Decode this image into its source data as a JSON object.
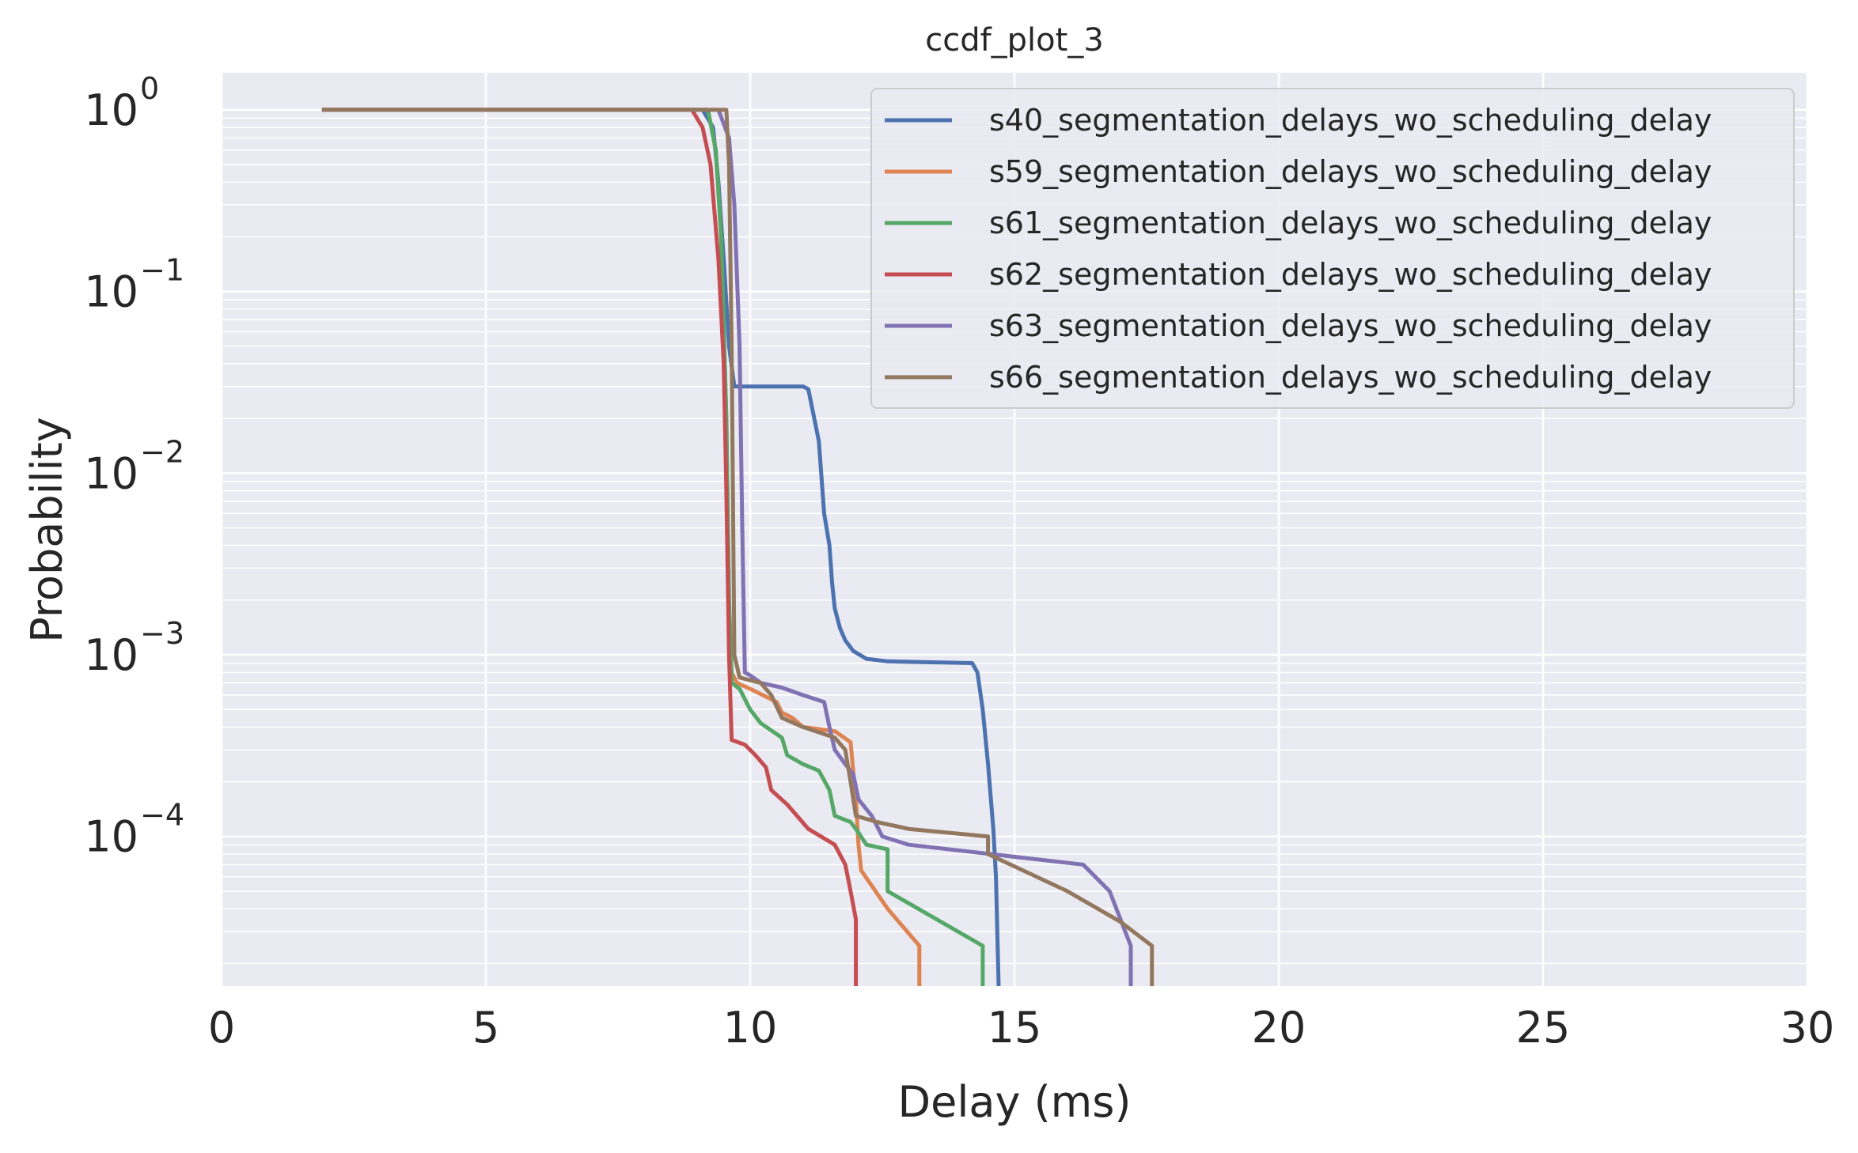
{
  "chart_data": {
    "type": "line",
    "title": "ccdf_plot_3",
    "xlabel": "Delay (ms)",
    "ylabel": "Probability",
    "xlim": [
      0,
      30
    ],
    "ylim": [
      1.5e-05,
      1.6
    ],
    "yscale": "log",
    "grid": true,
    "legend_position": "top-right",
    "x_ticks": [
      {
        "value": 0,
        "label": "0"
      },
      {
        "value": 5,
        "label": "5"
      },
      {
        "value": 10,
        "label": "10"
      },
      {
        "value": 15,
        "label": "15"
      },
      {
        "value": 20,
        "label": "20"
      },
      {
        "value": 25,
        "label": "25"
      },
      {
        "value": 30,
        "label": "30"
      }
    ],
    "y_ticks": [
      {
        "value": 1,
        "base": "10",
        "exp": "0"
      },
      {
        "value": 0.1,
        "base": "10",
        "exp": "−1"
      },
      {
        "value": 0.01,
        "base": "10",
        "exp": "−2"
      },
      {
        "value": 0.001,
        "base": "10",
        "exp": "−3"
      },
      {
        "value": 0.0001,
        "base": "10",
        "exp": "−4"
      }
    ],
    "series": [
      {
        "name": "s40_segmentation_delays_wo_scheduling_delay",
        "color": "#4c72b0",
        "points": [
          [
            1.9,
            1
          ],
          [
            9.1,
            1
          ],
          [
            9.3,
            0.8
          ],
          [
            9.4,
            0.4
          ],
          [
            9.5,
            0.15
          ],
          [
            9.6,
            0.05
          ],
          [
            9.7,
            0.03
          ],
          [
            11.0,
            0.03
          ],
          [
            11.1,
            0.029
          ],
          [
            11.3,
            0.015
          ],
          [
            11.4,
            0.006
          ],
          [
            11.5,
            0.004
          ],
          [
            11.55,
            0.0025
          ],
          [
            11.6,
            0.0018
          ],
          [
            11.7,
            0.0014
          ],
          [
            11.8,
            0.0012
          ],
          [
            11.95,
            0.00105
          ],
          [
            12.2,
            0.00095
          ],
          [
            12.6,
            0.00092
          ],
          [
            14.2,
            0.0009
          ],
          [
            14.3,
            0.0008
          ],
          [
            14.4,
            0.0005
          ],
          [
            14.5,
            0.00025
          ],
          [
            14.6,
            0.00011
          ],
          [
            14.65,
            6e-05
          ],
          [
            14.7,
            1.5e-05
          ]
        ]
      },
      {
        "name": "s59_segmentation_delays_wo_scheduling_delay",
        "color": "#dd8452",
        "points": [
          [
            1.9,
            1
          ],
          [
            9.2,
            1
          ],
          [
            9.35,
            0.6
          ],
          [
            9.45,
            0.2
          ],
          [
            9.55,
            0.02
          ],
          [
            9.6,
            0.002
          ],
          [
            9.65,
            0.0008
          ],
          [
            9.75,
            0.0007
          ],
          [
            10.0,
            0.00065
          ],
          [
            10.5,
            0.00055
          ],
          [
            10.6,
            0.00048
          ],
          [
            10.8,
            0.00045
          ],
          [
            11.0,
            0.0004
          ],
          [
            11.6,
            0.00038
          ],
          [
            11.9,
            0.00033
          ],
          [
            12.0,
            0.00016
          ],
          [
            12.05,
            9e-05
          ],
          [
            12.1,
            6.5e-05
          ],
          [
            12.6,
            4e-05
          ],
          [
            13.2,
            2.5e-05
          ],
          [
            13.2,
            1.5e-05
          ]
        ]
      },
      {
        "name": "s61_segmentation_delays_wo_scheduling_delay",
        "color": "#55a868",
        "points": [
          [
            1.9,
            1
          ],
          [
            9.2,
            1
          ],
          [
            9.35,
            0.6
          ],
          [
            9.45,
            0.2
          ],
          [
            9.55,
            0.02
          ],
          [
            9.6,
            0.002
          ],
          [
            9.65,
            0.0007
          ],
          [
            9.8,
            0.00065
          ],
          [
            10.0,
            0.0005
          ],
          [
            10.2,
            0.00042
          ],
          [
            10.6,
            0.00035
          ],
          [
            10.7,
            0.00028
          ],
          [
            11.0,
            0.00025
          ],
          [
            11.3,
            0.00023
          ],
          [
            11.5,
            0.00018
          ],
          [
            11.6,
            0.00013
          ],
          [
            11.9,
            0.00012
          ],
          [
            12.0,
            0.00011
          ],
          [
            12.2,
            9e-05
          ],
          [
            12.6,
            8.5e-05
          ],
          [
            12.6,
            5e-05
          ],
          [
            14.4,
            2.5e-05
          ],
          [
            14.4,
            1.5e-05
          ]
        ]
      },
      {
        "name": "s62_segmentation_delays_wo_scheduling_delay",
        "color": "#c44e52",
        "points": [
          [
            1.9,
            1
          ],
          [
            8.9,
            1
          ],
          [
            9.1,
            0.8
          ],
          [
            9.25,
            0.5
          ],
          [
            9.4,
            0.15
          ],
          [
            9.5,
            0.04
          ],
          [
            9.55,
            0.008
          ],
          [
            9.6,
            0.001
          ],
          [
            9.65,
            0.00034
          ],
          [
            9.9,
            0.00032
          ],
          [
            10.1,
            0.00028
          ],
          [
            10.3,
            0.00024
          ],
          [
            10.4,
            0.00018
          ],
          [
            10.7,
            0.00015
          ],
          [
            11.1,
            0.00011
          ],
          [
            11.6,
            9e-05
          ],
          [
            11.8,
            7e-05
          ],
          [
            11.9,
            5e-05
          ],
          [
            12.0,
            3.5e-05
          ],
          [
            12.0,
            1.5e-05
          ]
        ]
      },
      {
        "name": "s63_segmentation_delays_wo_scheduling_delay",
        "color": "#8172b3",
        "points": [
          [
            1.9,
            1
          ],
          [
            9.4,
            1
          ],
          [
            9.6,
            0.7
          ],
          [
            9.7,
            0.3
          ],
          [
            9.8,
            0.05
          ],
          [
            9.85,
            0.005
          ],
          [
            9.9,
            0.0008
          ],
          [
            10.0,
            0.00077
          ],
          [
            10.2,
            0.0007
          ],
          [
            10.6,
            0.00066
          ],
          [
            11.0,
            0.0006
          ],
          [
            11.4,
            0.00055
          ],
          [
            11.5,
            0.0004
          ],
          [
            11.6,
            0.0003
          ],
          [
            11.8,
            0.00025
          ],
          [
            11.95,
            0.00022
          ],
          [
            12.05,
            0.00016
          ],
          [
            12.3,
            0.00013
          ],
          [
            12.5,
            0.0001
          ],
          [
            13.0,
            9e-05
          ],
          [
            16.3,
            7e-05
          ],
          [
            16.8,
            5e-05
          ],
          [
            17.2,
            2.5e-05
          ],
          [
            17.2,
            1.5e-05
          ]
        ]
      },
      {
        "name": "s66_segmentation_delays_wo_scheduling_delay",
        "color": "#937860",
        "points": [
          [
            1.9,
            1
          ],
          [
            9.55,
            1
          ],
          [
            9.6,
            0.5
          ],
          [
            9.65,
            0.05
          ],
          [
            9.7,
            0.001
          ],
          [
            9.8,
            0.00075
          ],
          [
            10.2,
            0.0007
          ],
          [
            10.4,
            0.0006
          ],
          [
            10.6,
            0.00045
          ],
          [
            11.0,
            0.0004
          ],
          [
            11.6,
            0.00035
          ],
          [
            11.8,
            0.0003
          ],
          [
            11.9,
            0.0002
          ],
          [
            12.0,
            0.00013
          ],
          [
            12.4,
            0.00012
          ],
          [
            13.0,
            0.00011
          ],
          [
            14.5,
            0.0001
          ],
          [
            14.5,
            8e-05
          ],
          [
            16.0,
            5e-05
          ],
          [
            17.0,
            3.4e-05
          ],
          [
            17.6,
            2.5e-05
          ],
          [
            17.6,
            1.5e-05
          ]
        ]
      }
    ]
  }
}
